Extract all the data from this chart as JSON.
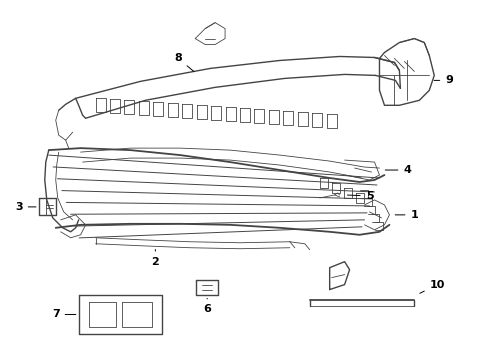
{
  "bg_color": "#ffffff",
  "line_color": "#444444",
  "text_color": "#000000",
  "lw_main": 1.0,
  "lw_thin": 0.6,
  "lw_thick": 1.3
}
